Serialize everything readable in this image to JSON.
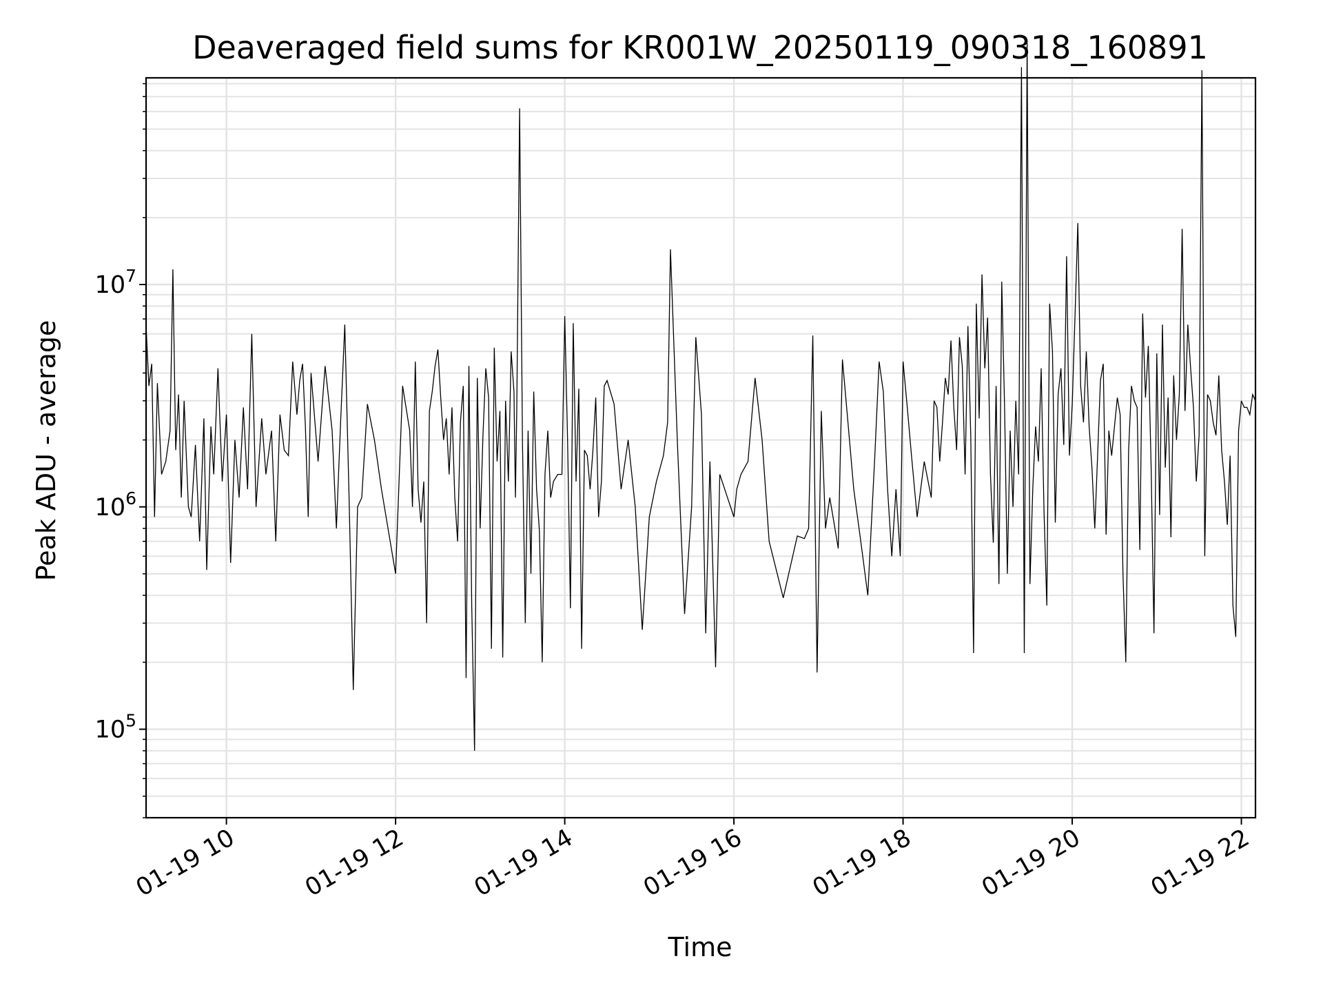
{
  "chart_data": {
    "type": "line",
    "title": "Deaveraged field sums for KR001W_20250119_090318_160891",
    "xlabel": "Time",
    "ylabel": "Peak ADU - average",
    "yscale": "log",
    "ylim": [
      40000,
      85000000
    ],
    "xlim": [
      "2025-01-19 09:03",
      "2025-01-19 22:10"
    ],
    "grid": true,
    "line_color": "#000000",
    "x_ticks": [
      "01-19 10",
      "01-19 12",
      "01-19 14",
      "01-19 16",
      "01-19 18",
      "01-19 20",
      "01-19 22"
    ],
    "y_ticks": [
      {
        "base": "10",
        "exp": "5",
        "value": 100000
      },
      {
        "base": "10",
        "exp": "6",
        "value": 1000000
      },
      {
        "base": "10",
        "exp": "7",
        "value": 10000000
      }
    ],
    "series": [
      {
        "x": [
          "2025-01-19 09:03",
          "2025-01-19 09:05",
          "2025-01-19 09:07",
          "2025-01-19 09:09",
          "2025-01-19 09:11",
          "2025-01-19 09:14",
          "2025-01-19 09:17",
          "2025-01-19 09:20",
          "2025-01-19 09:22",
          "2025-01-19 09:24",
          "2025-01-19 09:26",
          "2025-01-19 09:28",
          "2025-01-19 09:30",
          "2025-01-19 09:33",
          "2025-01-19 09:35",
          "2025-01-19 09:38",
          "2025-01-19 09:41",
          "2025-01-19 09:44",
          "2025-01-19 09:46",
          "2025-01-19 09:49",
          "2025-01-19 09:51",
          "2025-01-19 09:54",
          "2025-01-19 09:57",
          "2025-01-19 10:00",
          "2025-01-19 10:03",
          "2025-01-19 10:06",
          "2025-01-19 10:09",
          "2025-01-19 10:12",
          "2025-01-19 10:15",
          "2025-01-19 10:18",
          "2025-01-19 10:21",
          "2025-01-19 10:25",
          "2025-01-19 10:28",
          "2025-01-19 10:32",
          "2025-01-19 10:35",
          "2025-01-19 10:38",
          "2025-01-19 10:41",
          "2025-01-19 10:44",
          "2025-01-19 10:47",
          "2025-01-19 10:50",
          "2025-01-19 10:52",
          "2025-01-19 10:54",
          "2025-01-19 10:56",
          "2025-01-19 10:58",
          "2025-01-19 11:00",
          "2025-01-19 11:05",
          "2025-01-19 11:10",
          "2025-01-19 11:15",
          "2025-01-19 11:18",
          "2025-01-19 11:21",
          "2025-01-19 11:24",
          "2025-01-19 11:27",
          "2025-01-19 11:30",
          "2025-01-19 11:33",
          "2025-01-19 11:36",
          "2025-01-19 11:40",
          "2025-01-19 11:45",
          "2025-01-19 11:50",
          "2025-01-19 12:00",
          "2025-01-19 12:05",
          "2025-01-19 12:10",
          "2025-01-19 12:12",
          "2025-01-19 12:14",
          "2025-01-19 12:16",
          "2025-01-19 12:18",
          "2025-01-19 12:20",
          "2025-01-19 12:22",
          "2025-01-19 12:24",
          "2025-01-19 12:26",
          "2025-01-19 12:28",
          "2025-01-19 12:30",
          "2025-01-19 12:32",
          "2025-01-19 12:34",
          "2025-01-19 12:36",
          "2025-01-19 12:38",
          "2025-01-19 12:40",
          "2025-01-19 12:42",
          "2025-01-19 12:44",
          "2025-01-19 12:46",
          "2025-01-19 12:48",
          "2025-01-19 12:50",
          "2025-01-19 12:52",
          "2025-01-19 12:54",
          "2025-01-19 12:56",
          "2025-01-19 12:58",
          "2025-01-19 13:00",
          "2025-01-19 13:02",
          "2025-01-19 13:04",
          "2025-01-19 13:06",
          "2025-01-19 13:08",
          "2025-01-19 13:10",
          "2025-01-19 13:12",
          "2025-01-19 13:14",
          "2025-01-19 13:16",
          "2025-01-19 13:18",
          "2025-01-19 13:20",
          "2025-01-19 13:22",
          "2025-01-19 13:24",
          "2025-01-19 13:25",
          "2025-01-19 13:26",
          "2025-01-19 13:28",
          "2025-01-19 13:30",
          "2025-01-19 13:32",
          "2025-01-19 13:34",
          "2025-01-19 13:36",
          "2025-01-19 13:38",
          "2025-01-19 13:40",
          "2025-01-19 13:42",
          "2025-01-19 13:44",
          "2025-01-19 13:46",
          "2025-01-19 13:48",
          "2025-01-19 13:50",
          "2025-01-19 13:52",
          "2025-01-19 13:55",
          "2025-01-19 13:58",
          "2025-01-19 14:00",
          "2025-01-19 14:02",
          "2025-01-19 14:04",
          "2025-01-19 14:06",
          "2025-01-19 14:08",
          "2025-01-19 14:10",
          "2025-01-19 14:12",
          "2025-01-19 14:14",
          "2025-01-19 14:16",
          "2025-01-19 14:18",
          "2025-01-19 14:20",
          "2025-01-19 14:22",
          "2025-01-19 14:24",
          "2025-01-19 14:26",
          "2025-01-19 14:28",
          "2025-01-19 14:30",
          "2025-01-19 14:35",
          "2025-01-19 14:40",
          "2025-01-19 14:45",
          "2025-01-19 14:50",
          "2025-01-19 14:55",
          "2025-01-19 15:00",
          "2025-01-19 15:05",
          "2025-01-19 15:10",
          "2025-01-19 15:13",
          "2025-01-19 15:15",
          "2025-01-19 15:20",
          "2025-01-19 15:25",
          "2025-01-19 15:30",
          "2025-01-19 15:33",
          "2025-01-19 15:37",
          "2025-01-19 15:40",
          "2025-01-19 15:43",
          "2025-01-19 15:47",
          "2025-01-19 15:50",
          "2025-01-19 16:00",
          "2025-01-19 16:02",
          "2025-01-19 16:05",
          "2025-01-19 16:10",
          "2025-01-19 16:15",
          "2025-01-19 16:20",
          "2025-01-19 16:25",
          "2025-01-19 16:35",
          "2025-01-19 16:45",
          "2025-01-19 16:50",
          "2025-01-19 16:53",
          "2025-01-19 16:56",
          "2025-01-19 16:59",
          "2025-01-19 17:02",
          "2025-01-19 17:05",
          "2025-01-19 17:08",
          "2025-01-19 17:11",
          "2025-01-19 17:14",
          "2025-01-19 17:17",
          "2025-01-19 17:20",
          "2025-01-19 17:25",
          "2025-01-19 17:30",
          "2025-01-19 17:35",
          "2025-01-19 17:40",
          "2025-01-19 17:43",
          "2025-01-19 17:46",
          "2025-01-19 17:49",
          "2025-01-19 17:52",
          "2025-01-19 17:55",
          "2025-01-19 17:58",
          "2025-01-19 18:00",
          "2025-01-19 18:03",
          "2025-01-19 18:06",
          "2025-01-19 18:10",
          "2025-01-19 18:15",
          "2025-01-19 18:20",
          "2025-01-19 18:22",
          "2025-01-19 18:24",
          "2025-01-19 18:26",
          "2025-01-19 18:28",
          "2025-01-19 18:30",
          "2025-01-19 18:32",
          "2025-01-19 18:34",
          "2025-01-19 18:36",
          "2025-01-19 18:38",
          "2025-01-19 18:40",
          "2025-01-19 18:42",
          "2025-01-19 18:44",
          "2025-01-19 18:46",
          "2025-01-19 18:48",
          "2025-01-19 18:50",
          "2025-01-19 18:52",
          "2025-01-19 18:54",
          "2025-01-19 18:56",
          "2025-01-19 18:58",
          "2025-01-19 19:00",
          "2025-01-19 19:02",
          "2025-01-19 19:04",
          "2025-01-19 19:06",
          "2025-01-19 19:08",
          "2025-01-19 19:10",
          "2025-01-19 19:12",
          "2025-01-19 19:14",
          "2025-01-19 19:16",
          "2025-01-19 19:18",
          "2025-01-19 19:20",
          "2025-01-19 19:22",
          "2025-01-19 19:24",
          "2025-01-19 19:26",
          "2025-01-19 19:28",
          "2025-01-19 19:30",
          "2025-01-19 19:32",
          "2025-01-19 19:34",
          "2025-01-19 19:36",
          "2025-01-19 19:38",
          "2025-01-19 19:40",
          "2025-01-19 19:42",
          "2025-01-19 19:44",
          "2025-01-19 19:46",
          "2025-01-19 19:48",
          "2025-01-19 19:50",
          "2025-01-19 19:52",
          "2025-01-19 19:54",
          "2025-01-19 19:56",
          "2025-01-19 19:58",
          "2025-01-19 20:00",
          "2025-01-19 20:02",
          "2025-01-19 20:04",
          "2025-01-19 20:06",
          "2025-01-19 20:08",
          "2025-01-19 20:10",
          "2025-01-19 20:12",
          "2025-01-19 20:14",
          "2025-01-19 20:16",
          "2025-01-19 20:18",
          "2025-01-19 20:20",
          "2025-01-19 20:22",
          "2025-01-19 20:24",
          "2025-01-19 20:26",
          "2025-01-19 20:28",
          "2025-01-19 20:30",
          "2025-01-19 20:32",
          "2025-01-19 20:34",
          "2025-01-19 20:36",
          "2025-01-19 20:38",
          "2025-01-19 20:40",
          "2025-01-19 20:42",
          "2025-01-19 20:44",
          "2025-01-19 20:46",
          "2025-01-19 20:48",
          "2025-01-19 20:50",
          "2025-01-19 20:52",
          "2025-01-19 20:54",
          "2025-01-19 20:56",
          "2025-01-19 20:58",
          "2025-01-19 21:00",
          "2025-01-19 21:02",
          "2025-01-19 21:04",
          "2025-01-19 21:06",
          "2025-01-19 21:08",
          "2025-01-19 21:10",
          "2025-01-19 21:12",
          "2025-01-19 21:14",
          "2025-01-19 21:16",
          "2025-01-19 21:18",
          "2025-01-19 21:20",
          "2025-01-19 21:22",
          "2025-01-19 21:24",
          "2025-01-19 21:26",
          "2025-01-19 21:28",
          "2025-01-19 21:30",
          "2025-01-19 21:32",
          "2025-01-19 21:34",
          "2025-01-19 21:36",
          "2025-01-19 21:38",
          "2025-01-19 21:40",
          "2025-01-19 21:42",
          "2025-01-19 21:44",
          "2025-01-19 21:46",
          "2025-01-19 21:48",
          "2025-01-19 21:50",
          "2025-01-19 21:52",
          "2025-01-19 21:54",
          "2025-01-19 21:56",
          "2025-01-19 21:58",
          "2025-01-19 22:00",
          "2025-01-19 22:02",
          "2025-01-19 22:04",
          "2025-01-19 22:06",
          "2025-01-19 22:08",
          "2025-01-19 22:10"
        ],
        "y": [
          6500000,
          3500000,
          4400000,
          900000,
          3600000,
          1400000,
          1600000,
          2200000,
          11700000,
          1800000,
          3200000,
          1100000,
          3000000,
          1000000,
          900000,
          1900000,
          700000,
          2500000,
          520000,
          2300000,
          1400000,
          4200000,
          1300000,
          2600000,
          560000,
          2000000,
          1100000,
          2800000,
          1200000,
          6000000,
          1000000,
          2500000,
          1400000,
          2200000,
          700000,
          2600000,
          1800000,
          1700000,
          4500000,
          2600000,
          3700000,
          4400000,
          2300000,
          900000,
          4000000,
          1600000,
          4300000,
          2200000,
          800000,
          2400000,
          6600000,
          1100000,
          150000,
          1000000,
          1100000,
          2900000,
          2000000,
          1200000,
          500000,
          3500000,
          2200000,
          1000000,
          4500000,
          1200000,
          850000,
          1300000,
          300000,
          2700000,
          3300000,
          4300000,
          5100000,
          3100000,
          2000000,
          2500000,
          1400000,
          2800000,
          1100000,
          700000,
          2400000,
          3500000,
          170000,
          4300000,
          360000,
          80000,
          3800000,
          800000,
          2100000,
          4200000,
          3100000,
          230000,
          5200000,
          1600000,
          2700000,
          210000,
          3000000,
          1300000,
          5000000,
          3300000,
          1100000,
          2800000,
          62000000,
          2000000,
          300000,
          2200000,
          500000,
          3300000,
          1200000,
          780000,
          200000,
          1400000,
          2200000,
          1100000,
          1300000,
          1400000,
          1400000,
          7200000,
          2000000,
          350000,
          6700000,
          1300000,
          3400000,
          230000,
          1800000,
          1700000,
          1200000,
          1800000,
          3100000,
          900000,
          1300000,
          3500000,
          3700000,
          2900000,
          1200000,
          2000000,
          1000000,
          280000,
          900000,
          1300000,
          1700000,
          2400000,
          14400000,
          1900000,
          330000,
          1000000,
          5800000,
          2600000,
          270000,
          1600000,
          190000,
          1400000,
          900000,
          1200000,
          1400000,
          1600000,
          3800000,
          2000000,
          700000,
          390000,
          740000,
          720000,
          800000,
          5900000,
          180000,
          2700000,
          800000,
          1100000,
          850000,
          650000,
          4600000,
          2800000,
          1200000,
          700000,
          400000,
          1700000,
          4500000,
          3300000,
          1200000,
          600000,
          1200000,
          600000,
          4500000,
          2800000,
          1700000,
          900000,
          1600000,
          1100000,
          3000000,
          2800000,
          1600000,
          2400000,
          3800000,
          3200000,
          5600000,
          2800000,
          1800000,
          5800000,
          4300000,
          1400000,
          6500000,
          2100000,
          220000,
          8200000,
          2500000,
          11100000,
          4200000,
          7100000,
          1400000,
          690000,
          3500000,
          450000,
          10300000,
          2800000,
          500000,
          2200000,
          1000000,
          3000000,
          1400000,
          95000000,
          220000,
          125000000,
          450000,
          1200000,
          2300000,
          1600000,
          4200000,
          960000,
          360000,
          8200000,
          5000000,
          850000,
          3200000,
          4200000,
          1900000,
          13400000,
          1700000,
          2900000,
          7200000,
          18900000,
          3500000,
          2400000,
          5000000,
          2300000,
          1500000,
          800000,
          1700000,
          3700000,
          4400000,
          750000,
          2200000,
          1700000,
          2300000,
          3100000,
          2600000,
          500000,
          200000,
          1800000,
          3500000,
          3000000,
          2800000,
          640000,
          7400000,
          3100000,
          5300000,
          1500000,
          270000,
          4900000,
          920000,
          6600000,
          1500000,
          3100000,
          730000,
          3900000,
          2000000,
          3200000,
          17800000,
          2700000,
          6600000,
          4200000,
          2800000,
          1300000,
          2100000,
          92000000,
          600000,
          3200000,
          3000000,
          2400000,
          2100000,
          3900000,
          1800000,
          1300000,
          830000,
          1700000,
          360000,
          260000,
          2200000,
          3000000,
          2800000,
          2800000,
          2600000,
          3200000,
          3000000
        ]
      }
    ]
  }
}
